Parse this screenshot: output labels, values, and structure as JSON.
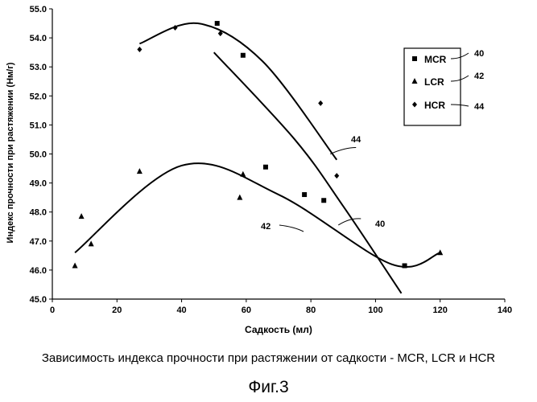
{
  "caption": "Зависимость индекса прочности при растяжении от садкости - MCR, LCR и HCR",
  "figure_label": "Фиг.3",
  "chart_data": {
    "type": "scatter",
    "xlabel": "Садкость (мл)",
    "ylabel": "Индекс прочности при растяжении (Нм/г)",
    "xlim": [
      0,
      140
    ],
    "ylim": [
      45.0,
      55.0
    ],
    "x_ticks": [
      0,
      20,
      40,
      60,
      80,
      100,
      120,
      140
    ],
    "y_ticks": [
      "45.0",
      "46.0",
      "47.0",
      "48.0",
      "49.0",
      "50.0",
      "51.0",
      "52.0",
      "53.0",
      "54.0",
      "55.0"
    ],
    "grid": false,
    "legend_position": "right",
    "series": [
      {
        "name": "MCR",
        "marker": "square",
        "ref": "40",
        "points": [
          [
            51,
            54.5
          ],
          [
            59,
            53.4
          ],
          [
            66,
            49.55
          ],
          [
            78,
            48.6
          ],
          [
            84,
            48.4
          ],
          [
            109,
            46.15
          ]
        ],
        "trend": [
          [
            50,
            53.5
          ],
          [
            75,
            50.5
          ],
          [
            90,
            48.2
          ],
          [
            108,
            45.2
          ]
        ]
      },
      {
        "name": "LCR",
        "marker": "triangle",
        "ref": "42",
        "points": [
          [
            7,
            46.15
          ],
          [
            9,
            47.85
          ],
          [
            12,
            46.9
          ],
          [
            27,
            49.4
          ],
          [
            58,
            48.5
          ],
          [
            59,
            49.3
          ],
          [
            120,
            46.6
          ]
        ],
        "trend": [
          [
            7,
            46.6
          ],
          [
            40,
            49.6
          ],
          [
            70,
            48.6
          ],
          [
            105,
            46.2
          ],
          [
            120,
            46.6
          ]
        ]
      },
      {
        "name": "HCR",
        "marker": "diamond",
        "ref": "44",
        "points": [
          [
            27,
            53.6
          ],
          [
            38,
            54.35
          ],
          [
            52,
            54.15
          ],
          [
            83,
            51.75
          ],
          [
            88,
            49.25
          ]
        ],
        "trend": [
          [
            27,
            53.8
          ],
          [
            45,
            54.5
          ],
          [
            65,
            53.2
          ],
          [
            88,
            49.8
          ]
        ]
      }
    ],
    "annotations": [
      "44",
      "42",
      "40"
    ]
  }
}
